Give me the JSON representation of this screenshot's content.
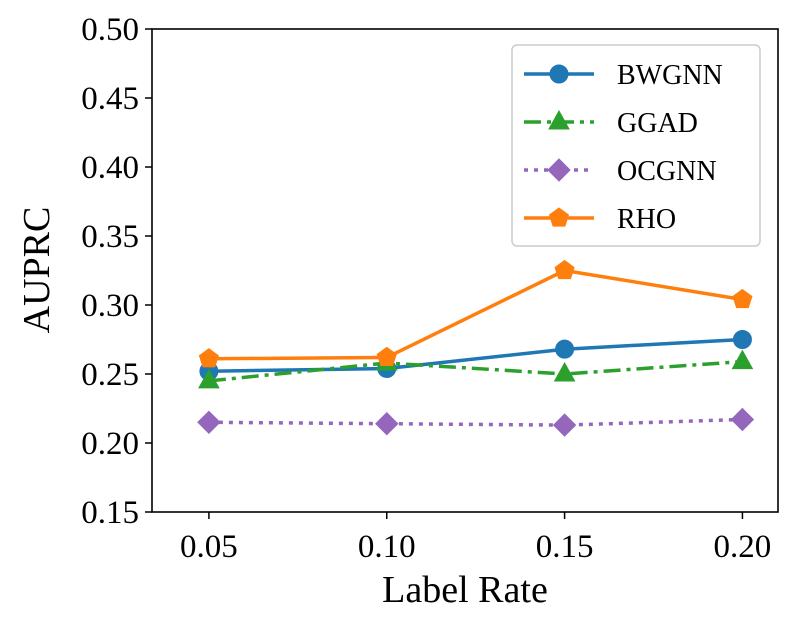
{
  "chart_data": {
    "type": "line",
    "title": "",
    "xlabel": "Label Rate",
    "ylabel": "AUPRC",
    "x": [
      0.05,
      0.1,
      0.15,
      0.2
    ],
    "x_tick_labels": [
      "0.05",
      "0.10",
      "0.15",
      "0.20"
    ],
    "xlim": [
      0.034,
      0.21
    ],
    "ylim": [
      0.15,
      0.5
    ],
    "y_ticks": [
      0.15,
      0.2,
      0.25,
      0.3,
      0.35,
      0.4,
      0.45,
      0.5
    ],
    "y_tick_labels": [
      "0.15",
      "0.20",
      "0.25",
      "0.30",
      "0.35",
      "0.40",
      "0.45",
      "0.50"
    ],
    "grid": false,
    "legend_position": "top-right",
    "series": [
      {
        "name": "BWGNN",
        "values": [
          0.252,
          0.254,
          0.268,
          0.275
        ],
        "color": "#1f77b4",
        "marker": "circle",
        "line_style": "solid"
      },
      {
        "name": "GGAD",
        "values": [
          0.245,
          0.258,
          0.25,
          0.259
        ],
        "color": "#2ca02c",
        "marker": "triangle",
        "line_style": "dashdot"
      },
      {
        "name": "OCGNN",
        "values": [
          0.215,
          0.214,
          0.213,
          0.217
        ],
        "color": "#9467bd",
        "marker": "diamond",
        "line_style": "dotted"
      },
      {
        "name": "RHO",
        "values": [
          0.261,
          0.262,
          0.325,
          0.304
        ],
        "color": "#ff7f0e",
        "marker": "pentagon",
        "line_style": "solid"
      }
    ]
  }
}
